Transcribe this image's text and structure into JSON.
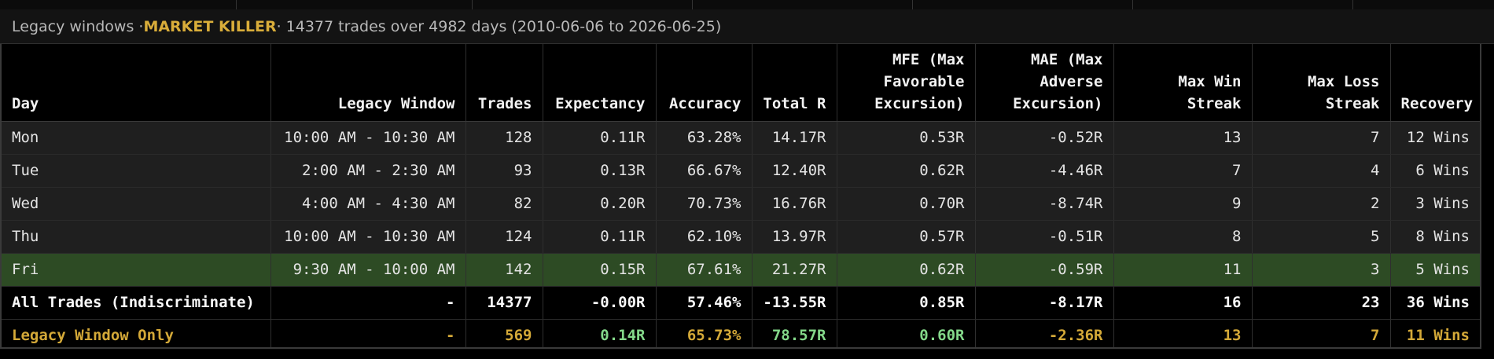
{
  "header": {
    "prefix": "Legacy windows · ",
    "strategy": "MARKET KILLER",
    "suffix": " · 14377 trades over 4982 days (2010-06-06 to 2026-06-25)"
  },
  "columns": [
    "Day",
    "Legacy Window",
    "Trades",
    "Expectancy",
    "Accuracy",
    "Total R",
    "MFE (Max Favorable Excursion)",
    "MAE (Max Adverse Excursion)",
    "Max Win Streak",
    "Max Loss Streak",
    "Recovery"
  ],
  "rows": [
    {
      "day": "Mon",
      "window": "10:00 AM - 10:30 AM",
      "trades": "128",
      "expectancy": "0.11R",
      "accuracy": "63.28%",
      "total_r": "14.17R",
      "mfe": "0.53R",
      "mae": "-0.52R",
      "max_win_streak": "13",
      "max_loss_streak": "7",
      "recovery": "12 Wins"
    },
    {
      "day": "Tue",
      "window": "2:00 AM - 2:30 AM",
      "trades": "93",
      "expectancy": "0.13R",
      "accuracy": "66.67%",
      "total_r": "12.40R",
      "mfe": "0.62R",
      "mae": "-4.46R",
      "max_win_streak": "7",
      "max_loss_streak": "4",
      "recovery": "6 Wins"
    },
    {
      "day": "Wed",
      "window": "4:00 AM - 4:30 AM",
      "trades": "82",
      "expectancy": "0.20R",
      "accuracy": "70.73%",
      "total_r": "16.76R",
      "mfe": "0.70R",
      "mae": "-8.74R",
      "max_win_streak": "9",
      "max_loss_streak": "2",
      "recovery": "3 Wins"
    },
    {
      "day": "Thu",
      "window": "10:00 AM - 10:30 AM",
      "trades": "124",
      "expectancy": "0.11R",
      "accuracy": "62.10%",
      "total_r": "13.97R",
      "mfe": "0.57R",
      "mae": "-0.51R",
      "max_win_streak": "8",
      "max_loss_streak": "5",
      "recovery": "8 Wins"
    },
    {
      "day": "Fri",
      "window": "9:30 AM - 10:00 AM",
      "trades": "142",
      "expectancy": "0.15R",
      "accuracy": "67.61%",
      "total_r": "21.27R",
      "mfe": "0.62R",
      "mae": "-0.59R",
      "max_win_streak": "11",
      "max_loss_streak": "3",
      "recovery": "5 Wins"
    }
  ],
  "summary": {
    "day": "All Trades (Indiscriminate)",
    "window": "-",
    "trades": "14377",
    "expectancy": "-0.00R",
    "accuracy": "57.46%",
    "total_r": "-13.55R",
    "mfe": "0.85R",
    "mae": "-8.17R",
    "max_win_streak": "16",
    "max_loss_streak": "23",
    "recovery": "36 Wins"
  },
  "legacy_only": {
    "day": "Legacy Window Only",
    "window": "-",
    "trades": "569",
    "expectancy": "0.14R",
    "accuracy": "65.73%",
    "total_r": "78.57R",
    "mfe": "0.60R",
    "mae": "-2.36R",
    "max_win_streak": "13",
    "max_loss_streak": "7",
    "recovery": "11 Wins"
  },
  "colors": {
    "accent_gold": "#d9ad3a",
    "positive": "#84d88a",
    "negative": "#ee6d66",
    "highlight_row": "#2d4b24"
  }
}
